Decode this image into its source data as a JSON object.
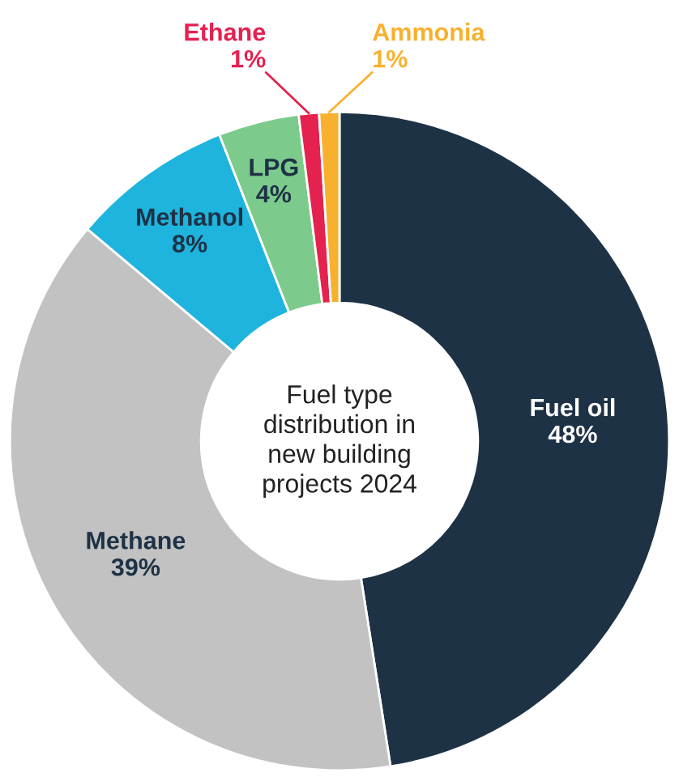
{
  "chart_data": {
    "type": "donut",
    "title": "Fuel type\ndistribution in\nnew building\nprojects 2024",
    "categories": [
      "Fuel oil",
      "Methane",
      "Methanol",
      "LPG",
      "Ethane",
      "Ammonia"
    ],
    "values": [
      48,
      39,
      8,
      4,
      1,
      1
    ],
    "value_labels": [
      "48%",
      "39%",
      "8%",
      "4%",
      "1%",
      "1%"
    ],
    "colors": [
      "#1e3246",
      "#c2c2c2",
      "#1fb4de",
      "#7dcb8c",
      "#e5214f",
      "#f7b12e"
    ],
    "legend": false
  }
}
